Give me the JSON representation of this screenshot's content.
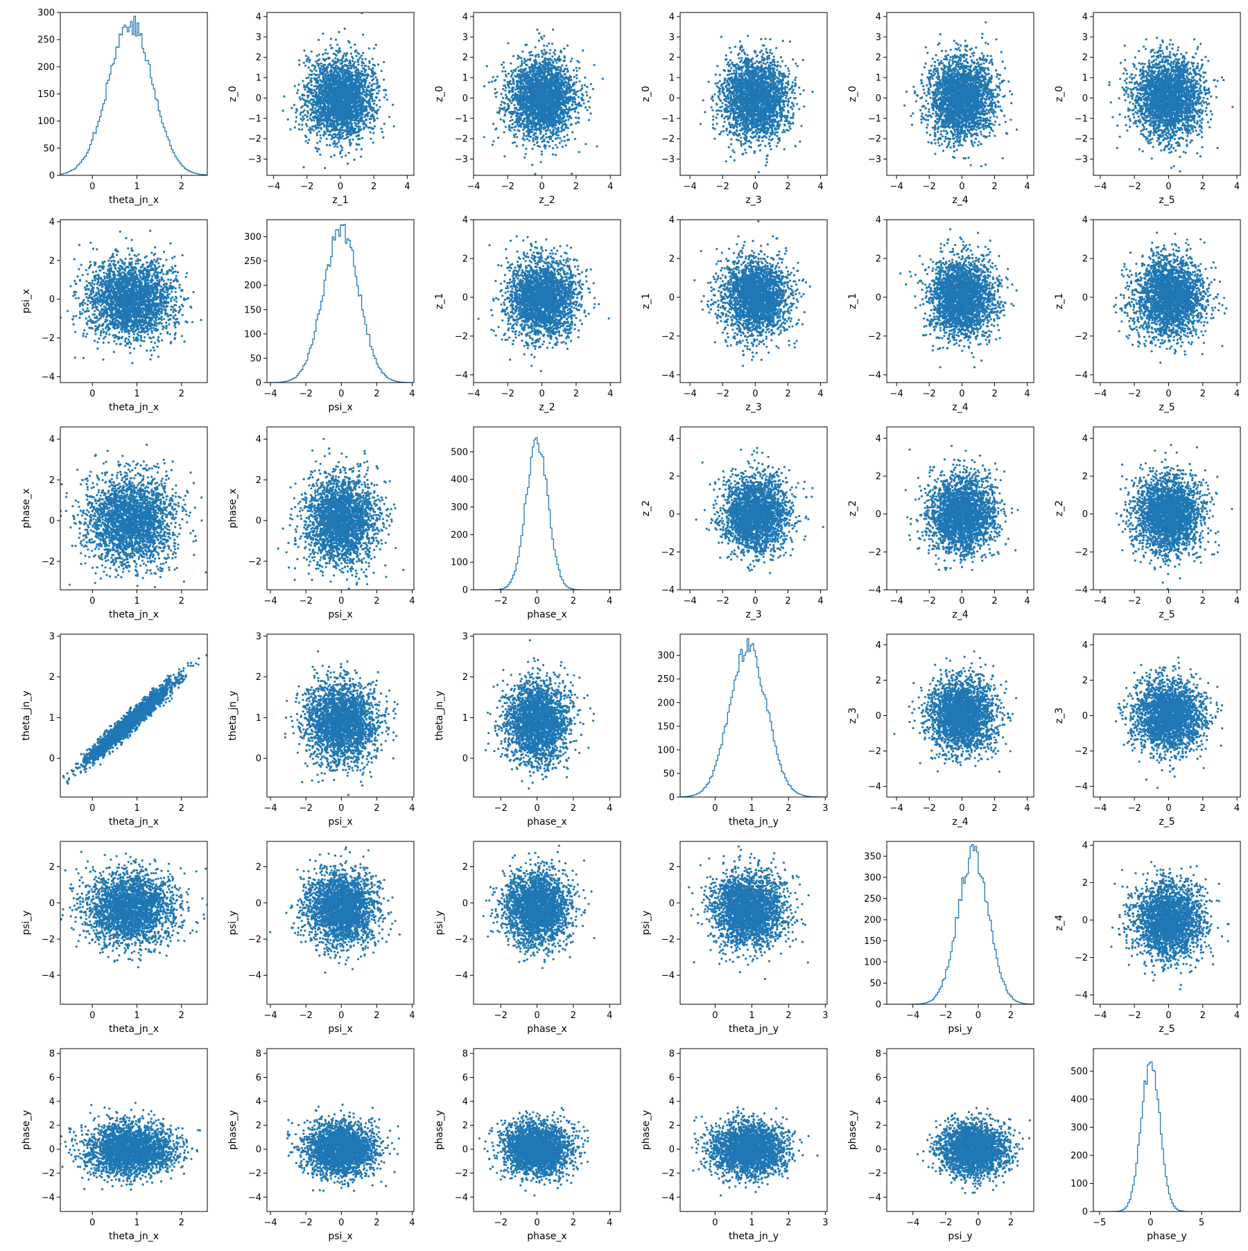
{
  "chart_data": {
    "type": "pairplot",
    "n_rows": 6,
    "n_cols": 6,
    "grid": false,
    "style": {
      "color": "#1f77b4",
      "background": "#ffffff",
      "axes": "#000000"
    },
    "columns": [
      {
        "xlabel": "theta_jn_x",
        "xlim": [
          -0.72,
          2.58
        ],
        "xticks": [
          0,
          1,
          2
        ]
      },
      {
        "xlabel": "psi_x",
        "xlim": [
          -4.2,
          4.1
        ],
        "xticks": [
          -4,
          -2,
          0,
          2,
          4
        ]
      },
      {
        "xlabel": "phase_x",
        "xlim": [
          -3.5,
          4.6
        ],
        "xticks": [
          -2,
          0,
          2,
          4
        ]
      },
      {
        "xlabel": "theta_jn_y",
        "xlim": [
          -0.95,
          3.05
        ],
        "xticks": [
          0,
          1,
          2,
          3
        ]
      },
      {
        "xlabel": "psi_y",
        "xlim": [
          -5.6,
          3.4
        ],
        "xticks": [
          -4,
          -2,
          0,
          2
        ]
      },
      {
        "xlabel": "phase_y",
        "xlim": [
          -5.6,
          8.8
        ],
        "xticks": [
          -5,
          0,
          5
        ]
      }
    ],
    "panels": [
      {
        "row": 0,
        "col": 0,
        "type": "histogram",
        "xlabel": "theta_jn_x",
        "ylabel": "",
        "xlim": [
          -0.72,
          2.58
        ],
        "ylim": [
          0,
          300
        ],
        "xticks": [
          0,
          1,
          2
        ],
        "yticks": [
          0,
          50,
          100,
          150,
          200,
          250,
          300
        ],
        "mean": 0.85,
        "sd": 0.5,
        "peak": 290
      },
      {
        "row": 0,
        "col": 1,
        "type": "scatter",
        "xlabel": "z_1",
        "ylabel": "z_0",
        "xlim": [
          -4.4,
          4.4
        ],
        "ylim": [
          -3.8,
          4.2
        ],
        "xticks": [
          -4,
          -2,
          0,
          2,
          4
        ],
        "yticks": [
          -3,
          -2,
          -1,
          0,
          1,
          2,
          3,
          4
        ]
      },
      {
        "row": 0,
        "col": 2,
        "type": "scatter",
        "xlabel": "z_2",
        "ylabel": "z_0",
        "xlim": [
          -4.0,
          4.6
        ],
        "ylim": [
          -3.8,
          4.2
        ],
        "xticks": [
          -4,
          -2,
          0,
          2,
          4
        ],
        "yticks": [
          -3,
          -2,
          -1,
          0,
          1,
          2,
          3,
          4
        ]
      },
      {
        "row": 0,
        "col": 3,
        "type": "scatter",
        "xlabel": "z_3",
        "ylabel": "z_0",
        "xlim": [
          -4.6,
          4.4
        ],
        "ylim": [
          -3.8,
          4.2
        ],
        "xticks": [
          -4,
          -2,
          0,
          2,
          4
        ],
        "yticks": [
          -3,
          -2,
          -1,
          0,
          1,
          2,
          3,
          4
        ]
      },
      {
        "row": 0,
        "col": 4,
        "type": "scatter",
        "xlabel": "z_4",
        "ylabel": "z_0",
        "xlim": [
          -4.6,
          4.4
        ],
        "ylim": [
          -3.8,
          4.2
        ],
        "xticks": [
          -4,
          -2,
          0,
          2,
          4
        ],
        "yticks": [
          -3,
          -2,
          -1,
          0,
          1,
          2,
          3,
          4
        ]
      },
      {
        "row": 0,
        "col": 5,
        "type": "scatter",
        "xlabel": "z_5",
        "ylabel": "z_0",
        "xlim": [
          -4.4,
          4.2
        ],
        "ylim": [
          -3.8,
          4.2
        ],
        "xticks": [
          -4,
          -2,
          0,
          2,
          4
        ],
        "yticks": [
          -3,
          -2,
          -1,
          0,
          1,
          2,
          3,
          4
        ]
      },
      {
        "row": 1,
        "col": 0,
        "type": "scatter",
        "xlabel": "theta_jn_x",
        "ylabel": "psi_x",
        "xlim": [
          -0.72,
          2.58
        ],
        "ylim": [
          -4.3,
          4.1
        ],
        "xticks": [
          0,
          1,
          2
        ],
        "yticks": [
          -4,
          -2,
          0,
          2,
          4
        ]
      },
      {
        "row": 1,
        "col": 1,
        "type": "histogram",
        "xlabel": "psi_x",
        "ylabel": "",
        "xlim": [
          -4.2,
          4.1
        ],
        "ylim": [
          0,
          335
        ],
        "xticks": [
          -4,
          -2,
          0,
          2,
          4
        ],
        "yticks": [
          0,
          50,
          100,
          150,
          200,
          250,
          300
        ],
        "mean": 0.0,
        "sd": 1.0,
        "peak": 325
      },
      {
        "row": 1,
        "col": 2,
        "type": "scatter",
        "xlabel": "z_2",
        "ylabel": "z_1",
        "xlim": [
          -4.0,
          4.6
        ],
        "ylim": [
          -4.4,
          4.0
        ],
        "xticks": [
          -4,
          -2,
          0,
          2,
          4
        ],
        "yticks": [
          -4,
          -2,
          0,
          2,
          4
        ]
      },
      {
        "row": 1,
        "col": 3,
        "type": "scatter",
        "xlabel": "z_3",
        "ylabel": "z_1",
        "xlim": [
          -4.6,
          4.4
        ],
        "ylim": [
          -4.4,
          4.0
        ],
        "xticks": [
          -4,
          -2,
          0,
          2,
          4
        ],
        "yticks": [
          -4,
          -2,
          0,
          2,
          4
        ]
      },
      {
        "row": 1,
        "col": 4,
        "type": "scatter",
        "xlabel": "z_4",
        "ylabel": "z_1",
        "xlim": [
          -4.6,
          4.4
        ],
        "ylim": [
          -4.4,
          4.0
        ],
        "xticks": [
          -4,
          -2,
          0,
          2,
          4
        ],
        "yticks": [
          -4,
          -2,
          0,
          2,
          4
        ]
      },
      {
        "row": 1,
        "col": 5,
        "type": "scatter",
        "xlabel": "z_5",
        "ylabel": "z_1",
        "xlim": [
          -4.4,
          4.2
        ],
        "ylim": [
          -4.4,
          4.0
        ],
        "xticks": [
          -4,
          -2,
          0,
          2,
          4
        ],
        "yticks": [
          -4,
          -2,
          0,
          2,
          4
        ]
      },
      {
        "row": 2,
        "col": 0,
        "type": "scatter",
        "xlabel": "theta_jn_x",
        "ylabel": "phase_x",
        "xlim": [
          -0.72,
          2.58
        ],
        "ylim": [
          -3.4,
          4.6
        ],
        "xticks": [
          0,
          1,
          2
        ],
        "yticks": [
          -2,
          0,
          2,
          4
        ]
      },
      {
        "row": 2,
        "col": 1,
        "type": "scatter",
        "xlabel": "psi_x",
        "ylabel": "phase_x",
        "xlim": [
          -4.2,
          4.1
        ],
        "ylim": [
          -3.4,
          4.6
        ],
        "xticks": [
          -4,
          -2,
          0,
          2,
          4
        ],
        "yticks": [
          -2,
          0,
          2,
          4
        ]
      },
      {
        "row": 2,
        "col": 2,
        "type": "histogram",
        "xlabel": "phase_x",
        "ylabel": "",
        "xlim": [
          -3.5,
          4.6
        ],
        "ylim": [
          0,
          590
        ],
        "xticks": [
          -2,
          0,
          2,
          4
        ],
        "yticks": [
          0,
          100,
          200,
          300,
          400,
          500
        ],
        "mean": 0.0,
        "sd": 0.6,
        "peak": 560
      },
      {
        "row": 2,
        "col": 3,
        "type": "scatter",
        "xlabel": "z_3",
        "ylabel": "z_2",
        "xlim": [
          -4.6,
          4.4
        ],
        "ylim": [
          -4.0,
          4.6
        ],
        "xticks": [
          -4,
          -2,
          0,
          2,
          4
        ],
        "yticks": [
          -4,
          -2,
          0,
          2,
          4
        ]
      },
      {
        "row": 2,
        "col": 4,
        "type": "scatter",
        "xlabel": "z_4",
        "ylabel": "z_2",
        "xlim": [
          -4.6,
          4.4
        ],
        "ylim": [
          -4.0,
          4.6
        ],
        "xticks": [
          -4,
          -2,
          0,
          2,
          4
        ],
        "yticks": [
          -4,
          -2,
          0,
          2,
          4
        ]
      },
      {
        "row": 2,
        "col": 5,
        "type": "scatter",
        "xlabel": "z_5",
        "ylabel": "z_2",
        "xlim": [
          -4.4,
          4.2
        ],
        "ylim": [
          -4.0,
          4.6
        ],
        "xticks": [
          -4,
          -2,
          0,
          2,
          4
        ],
        "yticks": [
          -4,
          -2,
          0,
          2,
          4
        ]
      },
      {
        "row": 3,
        "col": 0,
        "type": "scatter",
        "xlabel": "theta_jn_x",
        "ylabel": "theta_jn_y",
        "xlim": [
          -0.72,
          2.58
        ],
        "ylim": [
          -0.95,
          3.05
        ],
        "xticks": [
          0,
          1,
          2
        ],
        "yticks": [
          0,
          1,
          2,
          3
        ],
        "correlation": 0.97
      },
      {
        "row": 3,
        "col": 1,
        "type": "scatter",
        "xlabel": "psi_x",
        "ylabel": "theta_jn_y",
        "xlim": [
          -4.2,
          4.1
        ],
        "ylim": [
          -0.95,
          3.05
        ],
        "xticks": [
          -4,
          -2,
          0,
          2,
          4
        ],
        "yticks": [
          0,
          1,
          2,
          3
        ]
      },
      {
        "row": 3,
        "col": 2,
        "type": "scatter",
        "xlabel": "phase_x",
        "ylabel": "theta_jn_y",
        "xlim": [
          -3.5,
          4.6
        ],
        "ylim": [
          -0.95,
          3.05
        ],
        "xticks": [
          -2,
          0,
          2,
          4
        ],
        "yticks": [
          0,
          1,
          2,
          3
        ]
      },
      {
        "row": 3,
        "col": 3,
        "type": "histogram",
        "xlabel": "theta_jn_y",
        "ylabel": "",
        "xlim": [
          -0.95,
          3.05
        ],
        "ylim": [
          0,
          345
        ],
        "xticks": [
          0,
          1,
          2,
          3
        ],
        "yticks": [
          0,
          50,
          100,
          150,
          200,
          250,
          300
        ],
        "mean": 0.9,
        "sd": 0.5,
        "peak": 330
      },
      {
        "row": 3,
        "col": 4,
        "type": "scatter",
        "xlabel": "z_4",
        "ylabel": "z_3",
        "xlim": [
          -4.6,
          4.4
        ],
        "ylim": [
          -4.6,
          4.6
        ],
        "xticks": [
          -4,
          -2,
          0,
          2,
          4
        ],
        "yticks": [
          -4,
          -2,
          0,
          2,
          4
        ]
      },
      {
        "row": 3,
        "col": 5,
        "type": "scatter",
        "xlabel": "z_5",
        "ylabel": "z_3",
        "xlim": [
          -4.4,
          4.2
        ],
        "ylim": [
          -4.6,
          4.6
        ],
        "xticks": [
          -4,
          -2,
          0,
          2,
          4
        ],
        "yticks": [
          -4,
          -2,
          0,
          2,
          4
        ]
      },
      {
        "row": 4,
        "col": 0,
        "type": "scatter",
        "xlabel": "theta_jn_x",
        "ylabel": "psi_y",
        "xlim": [
          -0.72,
          2.58
        ],
        "ylim": [
          -5.6,
          3.4
        ],
        "xticks": [
          0,
          1,
          2
        ],
        "yticks": [
          -4,
          -2,
          0,
          2
        ]
      },
      {
        "row": 4,
        "col": 1,
        "type": "scatter",
        "xlabel": "psi_x",
        "ylabel": "psi_y",
        "xlim": [
          -4.2,
          4.1
        ],
        "ylim": [
          -5.6,
          3.4
        ],
        "xticks": [
          -4,
          -2,
          0,
          2,
          4
        ],
        "yticks": [
          -4,
          -2,
          0,
          2
        ]
      },
      {
        "row": 4,
        "col": 2,
        "type": "scatter",
        "xlabel": "phase_x",
        "ylabel": "psi_y",
        "xlim": [
          -3.5,
          4.6
        ],
        "ylim": [
          -5.6,
          3.4
        ],
        "xticks": [
          -2,
          0,
          2,
          4
        ],
        "yticks": [
          -4,
          -2,
          0,
          2
        ]
      },
      {
        "row": 4,
        "col": 3,
        "type": "scatter",
        "xlabel": "theta_jn_y",
        "ylabel": "psi_y",
        "xlim": [
          -0.95,
          3.05
        ],
        "ylim": [
          -5.6,
          3.4
        ],
        "xticks": [
          0,
          1,
          2,
          3
        ],
        "yticks": [
          -4,
          -2,
          0,
          2
        ]
      },
      {
        "row": 4,
        "col": 4,
        "type": "histogram",
        "xlabel": "psi_y",
        "ylabel": "",
        "xlim": [
          -5.6,
          3.4
        ],
        "ylim": [
          0,
          385
        ],
        "xticks": [
          -4,
          -2,
          0,
          2
        ],
        "yticks": [
          0,
          50,
          100,
          150,
          200,
          250,
          300,
          350
        ],
        "mean": -0.3,
        "sd": 0.95,
        "peak": 365
      },
      {
        "row": 4,
        "col": 5,
        "type": "scatter",
        "xlabel": "z_5",
        "ylabel": "z_4",
        "xlim": [
          -4.4,
          4.2
        ],
        "ylim": [
          -4.5,
          4.2
        ],
        "xticks": [
          -4,
          -2,
          0,
          2,
          4
        ],
        "yticks": [
          -4,
          -2,
          0,
          2,
          4
        ]
      },
      {
        "row": 5,
        "col": 0,
        "type": "scatter",
        "xlabel": "theta_jn_x",
        "ylabel": "phase_y",
        "xlim": [
          -0.72,
          2.58
        ],
        "ylim": [
          -5.2,
          8.4
        ],
        "xticks": [
          0,
          1,
          2
        ],
        "yticks": [
          -4,
          -2,
          0,
          2,
          4,
          6,
          8
        ]
      },
      {
        "row": 5,
        "col": 1,
        "type": "scatter",
        "xlabel": "psi_x",
        "ylabel": "phase_y",
        "xlim": [
          -4.2,
          4.1
        ],
        "ylim": [
          -5.2,
          8.4
        ],
        "xticks": [
          -4,
          -2,
          0,
          2,
          4
        ],
        "yticks": [
          -4,
          -2,
          0,
          2,
          4,
          6,
          8
        ]
      },
      {
        "row": 5,
        "col": 2,
        "type": "scatter",
        "xlabel": "phase_x",
        "ylabel": "phase_y",
        "xlim": [
          -3.5,
          4.6
        ],
        "ylim": [
          -5.2,
          8.4
        ],
        "xticks": [
          -2,
          0,
          2,
          4
        ],
        "yticks": [
          -4,
          -2,
          0,
          2,
          4,
          6,
          8
        ]
      },
      {
        "row": 5,
        "col": 3,
        "type": "scatter",
        "xlabel": "theta_jn_y",
        "ylabel": "phase_y",
        "xlim": [
          -0.95,
          3.05
        ],
        "ylim": [
          -5.2,
          8.4
        ],
        "xticks": [
          0,
          1,
          2,
          3
        ],
        "yticks": [
          -4,
          -2,
          0,
          2,
          4,
          6,
          8
        ]
      },
      {
        "row": 5,
        "col": 4,
        "type": "scatter",
        "xlabel": "psi_y",
        "ylabel": "phase_y",
        "xlim": [
          -5.6,
          3.4
        ],
        "ylim": [
          -5.2,
          8.4
        ],
        "xticks": [
          -4,
          -2,
          0,
          2
        ],
        "yticks": [
          -4,
          -2,
          0,
          2,
          4,
          6,
          8
        ]
      },
      {
        "row": 5,
        "col": 5,
        "type": "histogram",
        "xlabel": "phase_y",
        "ylabel": "",
        "xlim": [
          -5.6,
          8.8
        ],
        "ylim": [
          0,
          580
        ],
        "xticks": [
          -5,
          0,
          5
        ],
        "yticks": [
          0,
          100,
          200,
          300,
          400,
          500
        ],
        "mean": 0.0,
        "sd": 0.9,
        "peak": 555
      }
    ]
  }
}
